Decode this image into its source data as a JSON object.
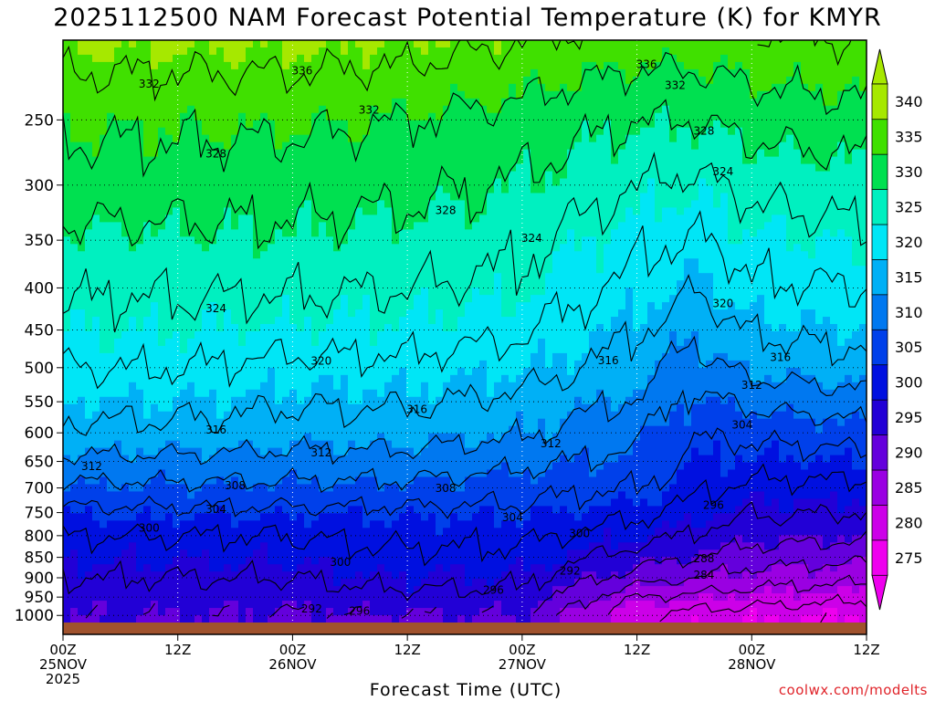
{
  "title": "2025112500 NAM Forecast Potential Temperature (K) for KMYR",
  "credit": "coolwx.com/modelts",
  "chart_data": {
    "type": "heatmap",
    "title": "2025112500 NAM Forecast Potential Temperature (K) for KMYR",
    "xlabel": "Forecast Time (UTC)",
    "ylabel": "",
    "y_scale": "log-pressure",
    "y_ticks": [
      250,
      300,
      350,
      400,
      450,
      500,
      550,
      600,
      650,
      700,
      750,
      800,
      850,
      900,
      950,
      1000
    ],
    "y_range_hpa": [
      200,
      1020
    ],
    "x_range_hours": [
      0,
      84
    ],
    "x_ticks": [
      {
        "hour": 0,
        "lines": [
          "00Z",
          "25NOV",
          "2025"
        ]
      },
      {
        "hour": 12,
        "lines": [
          "12Z"
        ]
      },
      {
        "hour": 24,
        "lines": [
          "00Z",
          "26NOV"
        ]
      },
      {
        "hour": 36,
        "lines": [
          "12Z"
        ]
      },
      {
        "hour": 48,
        "lines": [
          "00Z",
          "27NOV"
        ]
      },
      {
        "hour": 60,
        "lines": [
          "12Z"
        ]
      },
      {
        "hour": 72,
        "lines": [
          "00Z",
          "28NOV"
        ]
      },
      {
        "hour": 84,
        "lines": [
          "12Z"
        ]
      }
    ],
    "colorbar": {
      "min": 272.5,
      "max": 342.5,
      "ticks": [
        275,
        280,
        285,
        290,
        295,
        300,
        305,
        310,
        315,
        320,
        325,
        330,
        335,
        340
      ],
      "bins": [
        {
          "from": 272.5,
          "to": 277.5,
          "color": "#ee00ee"
        },
        {
          "from": 277.5,
          "to": 282.5,
          "color": "#cc00e8"
        },
        {
          "from": 282.5,
          "to": 287.5,
          "color": "#9a00e2"
        },
        {
          "from": 287.5,
          "to": 292.5,
          "color": "#6400dc"
        },
        {
          "from": 292.5,
          "to": 297.5,
          "color": "#2200d6"
        },
        {
          "from": 297.5,
          "to": 302.5,
          "color": "#0010e0"
        },
        {
          "from": 302.5,
          "to": 307.5,
          "color": "#0040ea"
        },
        {
          "from": 307.5,
          "to": 312.5,
          "color": "#0078f0"
        },
        {
          "from": 312.5,
          "to": 317.5,
          "color": "#00b0f6"
        },
        {
          "from": 317.5,
          "to": 322.5,
          "color": "#00e6f6"
        },
        {
          "from": 322.5,
          "to": 327.5,
          "color": "#00f0c0"
        },
        {
          "from": 327.5,
          "to": 332.5,
          "color": "#00e050"
        },
        {
          "from": 332.5,
          "to": 337.5,
          "color": "#40e000"
        },
        {
          "from": 337.5,
          "to": 342.5,
          "color": "#a6e800"
        }
      ]
    },
    "contour_interval_K": 4,
    "profile_columns_hours": [
      0,
      12,
      24,
      36,
      48,
      60,
      66,
      72,
      84
    ],
    "profile_levels_hpa": [
      1000,
      950,
      900,
      850,
      800,
      750,
      700,
      650,
      600,
      550,
      500,
      450,
      400,
      350,
      300,
      250,
      210
    ],
    "theta_profiles_K": [
      [
        292.5,
        294,
        296,
        298,
        300,
        303,
        307,
        311,
        315,
        317.5,
        320,
        322.5,
        324.5,
        327,
        330,
        333,
        337
      ],
      [
        292.5,
        294,
        296,
        298,
        300,
        303,
        307,
        311,
        315,
        317.5,
        320,
        322.5,
        324.5,
        327,
        330,
        333,
        337
      ],
      [
        291.5,
        294,
        296,
        298,
        300,
        303,
        307,
        310.5,
        314,
        316.5,
        319,
        322,
        324.5,
        327,
        329.5,
        333,
        337
      ],
      [
        292,
        295,
        297.5,
        299.5,
        301,
        303,
        307,
        310.5,
        314,
        316.5,
        319,
        322,
        324,
        326.5,
        329,
        332,
        336.5
      ],
      [
        292,
        295,
        297,
        299,
        301,
        303,
        305.5,
        309,
        312.5,
        315,
        318,
        320.5,
        323,
        325,
        327.5,
        330.5,
        335
      ],
      [
        280,
        284,
        290,
        294,
        298,
        301,
        304,
        306.5,
        309,
        311.5,
        314,
        316.5,
        319,
        321,
        324,
        328,
        333
      ],
      [
        278.5,
        283,
        288,
        292,
        295.5,
        298.5,
        301,
        302.5,
        304.5,
        306.5,
        310,
        313,
        316.5,
        319.5,
        323,
        328,
        333
      ],
      [
        278,
        282,
        286,
        290,
        293.5,
        296.5,
        299,
        302,
        305,
        309,
        313.5,
        316.5,
        319.5,
        322,
        325,
        329.5,
        334
      ],
      [
        276.5,
        281,
        285,
        289,
        293,
        296,
        299,
        302.5,
        306,
        310.5,
        314.5,
        317.5,
        320,
        323,
        326,
        330.5,
        335
      ]
    ],
    "contour_labels": [
      {
        "text": "336",
        "hour": 25,
        "hpa": 218
      },
      {
        "text": "336",
        "hour": 61,
        "hpa": 214
      },
      {
        "text": "332",
        "hour": 9,
        "hpa": 226
      },
      {
        "text": "332",
        "hour": 32,
        "hpa": 243
      },
      {
        "text": "332",
        "hour": 64,
        "hpa": 227
      },
      {
        "text": "328",
        "hour": 16,
        "hpa": 275
      },
      {
        "text": "328",
        "hour": 40,
        "hpa": 322
      },
      {
        "text": "328",
        "hour": 67,
        "hpa": 258
      },
      {
        "text": "324",
        "hour": 69,
        "hpa": 289
      },
      {
        "text": "324",
        "hour": 49,
        "hpa": 348
      },
      {
        "text": "324",
        "hour": 16,
        "hpa": 424
      },
      {
        "text": "320",
        "hour": 69,
        "hpa": 418
      },
      {
        "text": "320",
        "hour": 27,
        "hpa": 491
      },
      {
        "text": "316",
        "hour": 57,
        "hpa": 490
      },
      {
        "text": "316",
        "hour": 75,
        "hpa": 486
      },
      {
        "text": "316",
        "hour": 37,
        "hpa": 562
      },
      {
        "text": "316",
        "hour": 16,
        "hpa": 595
      },
      {
        "text": "312",
        "hour": 72,
        "hpa": 525
      },
      {
        "text": "312",
        "hour": 51,
        "hpa": 618
      },
      {
        "text": "312",
        "hour": 27,
        "hpa": 634
      },
      {
        "text": "312",
        "hour": 3,
        "hpa": 659
      },
      {
        "text": "308",
        "hour": 18,
        "hpa": 695
      },
      {
        "text": "308",
        "hour": 40,
        "hpa": 701
      },
      {
        "text": "304",
        "hour": 71,
        "hpa": 587
      },
      {
        "text": "304",
        "hour": 16,
        "hpa": 743
      },
      {
        "text": "304",
        "hour": 47,
        "hpa": 760
      },
      {
        "text": "300",
        "hour": 9,
        "hpa": 783
      },
      {
        "text": "300",
        "hour": 54,
        "hpa": 795
      },
      {
        "text": "300",
        "hour": 29,
        "hpa": 862
      },
      {
        "text": "296",
        "hour": 68,
        "hpa": 735
      },
      {
        "text": "296",
        "hour": 45,
        "hpa": 932
      },
      {
        "text": "296",
        "hour": 31,
        "hpa": 988
      },
      {
        "text": "292",
        "hour": 26,
        "hpa": 982
      },
      {
        "text": "292",
        "hour": 53,
        "hpa": 883
      },
      {
        "text": "288",
        "hour": 67,
        "hpa": 853
      },
      {
        "text": "284",
        "hour": 67,
        "hpa": 893
      }
    ]
  }
}
